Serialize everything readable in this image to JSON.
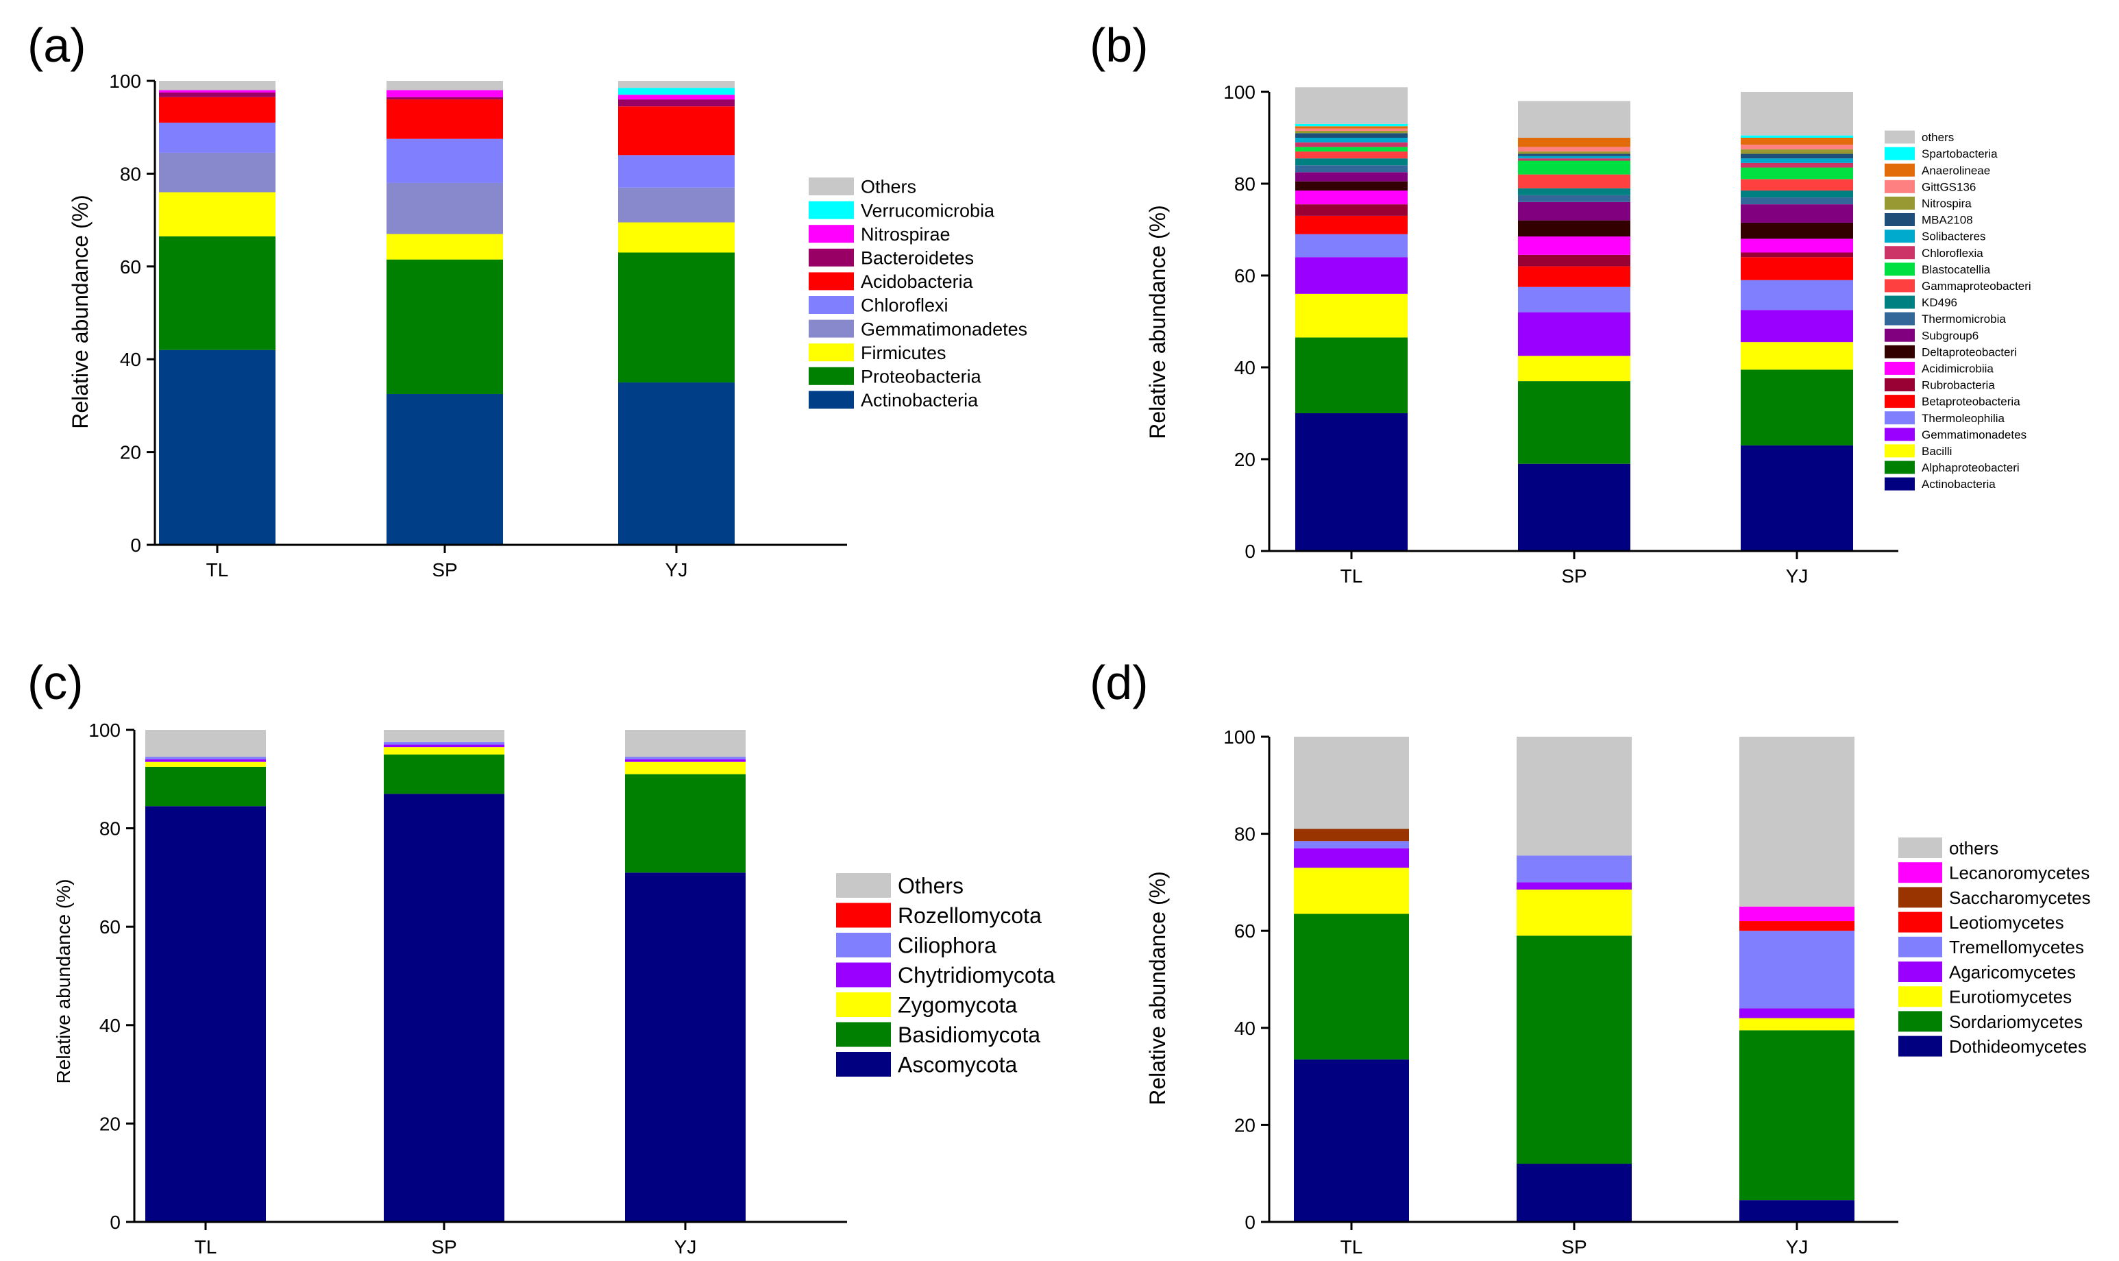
{
  "categories": [
    "TL",
    "SP",
    "YJ"
  ],
  "chart_data": [
    {
      "type": "bar",
      "stacked": true,
      "panel_label": "(a)",
      "title": "",
      "xlabel": "",
      "ylabel": "Relative abundance (%)",
      "ylim": [
        0,
        100
      ],
      "yticks": [
        0,
        20,
        40,
        60,
        80,
        100
      ],
      "categories": [
        "TL",
        "SP",
        "YJ"
      ],
      "legend_position": "right",
      "series": [
        {
          "name": "Actinobacteria",
          "color": "#003f87",
          "values": [
            42,
            32.5,
            35
          ]
        },
        {
          "name": "Proteobacteria",
          "color": "#008000",
          "values": [
            24.5,
            29,
            28
          ]
        },
        {
          "name": "Firmicutes",
          "color": "#ffff00",
          "values": [
            9.5,
            5.5,
            6.5
          ]
        },
        {
          "name": "Gemmatimonadetes",
          "color": "#8888cc",
          "values": [
            8.5,
            11,
            7.5
          ]
        },
        {
          "name": "Chloroflexi",
          "color": "#8080ff",
          "values": [
            6.5,
            9.5,
            7
          ]
        },
        {
          "name": "Acidobacteria",
          "color": "#ff0000",
          "values": [
            5.5,
            8.5,
            10.5
          ]
        },
        {
          "name": "Bacteroidetes",
          "color": "#990066",
          "values": [
            1,
            0.5,
            1.5
          ]
        },
        {
          "name": "Nitrospirae",
          "color": "#ff00ff",
          "values": [
            0.5,
            1.5,
            1
          ]
        },
        {
          "name": "Verrucomicrobia",
          "color": "#00ffff",
          "values": [
            0,
            0,
            1.5
          ]
        },
        {
          "name": "Others",
          "color": "#c8c8c8",
          "values": [
            2,
            2,
            1.5
          ]
        }
      ]
    },
    {
      "type": "bar",
      "stacked": true,
      "panel_label": "(b)",
      "title": "",
      "xlabel": "",
      "ylabel": "Relative abundance (%)",
      "ylim": [
        0,
        100
      ],
      "yticks": [
        0,
        20,
        40,
        60,
        80,
        100
      ],
      "categories": [
        "TL",
        "SP",
        "YJ"
      ],
      "legend_position": "right",
      "series": [
        {
          "name": "Actinobacteria",
          "color": "#000080",
          "values": [
            30,
            19,
            23
          ]
        },
        {
          "name": "Alphaproteobacteri",
          "color": "#008000",
          "values": [
            16.5,
            18,
            16.5
          ]
        },
        {
          "name": "Bacilli",
          "color": "#ffff00",
          "values": [
            9.5,
            5.5,
            6
          ]
        },
        {
          "name": "Gemmatimonadetes",
          "color": "#9900ff",
          "values": [
            8,
            9.5,
            7
          ]
        },
        {
          "name": "Thermoleophilia",
          "color": "#8080ff",
          "values": [
            5,
            5.5,
            6.5
          ]
        },
        {
          "name": "Betaproteobacteria",
          "color": "#ff0000",
          "values": [
            4,
            4.5,
            5
          ]
        },
        {
          "name": "Rubrobacteria",
          "color": "#990033",
          "values": [
            2.5,
            2.5,
            1
          ]
        },
        {
          "name": "Acidimicrobiia",
          "color": "#ff00ff",
          "values": [
            3,
            4,
            3
          ]
        },
        {
          "name": "Deltaproteobacteri",
          "color": "#330000",
          "values": [
            2,
            3.5,
            3.5
          ]
        },
        {
          "name": "Subgroup6",
          "color": "#800080",
          "values": [
            2,
            4,
            4
          ]
        },
        {
          "name": "Thermomicrobia",
          "color": "#336699",
          "values": [
            1.5,
            1.5,
            1.5
          ]
        },
        {
          "name": "KD496",
          "color": "#008080",
          "values": [
            1.5,
            1.5,
            1.5
          ]
        },
        {
          "name": "Gammaproteobacteri",
          "color": "#ff4040",
          "values": [
            1.5,
            3,
            2.5
          ]
        },
        {
          "name": "Blastocatellia",
          "color": "#00e040",
          "values": [
            1,
            3,
            2.5
          ]
        },
        {
          "name": "Chloroflexia",
          "color": "#cc3366",
          "values": [
            1,
            0.5,
            1
          ]
        },
        {
          "name": "Solibacteres",
          "color": "#00aacc",
          "values": [
            1,
            0.5,
            1
          ]
        },
        {
          "name": "MBA2108",
          "color": "#1f4e79",
          "values": [
            1,
            0.5,
            1
          ]
        },
        {
          "name": "Nitrospira",
          "color": "#999933",
          "values": [
            0.5,
            0.5,
            1
          ]
        },
        {
          "name": "GittGS136",
          "color": "#ff8080",
          "values": [
            0.5,
            1,
            1
          ]
        },
        {
          "name": "Anaerolineae",
          "color": "#e26b0a",
          "values": [
            0.5,
            2,
            1.5
          ]
        },
        {
          "name": "Spartobacteria",
          "color": "#00ffff",
          "values": [
            0.5,
            0,
            0.5
          ]
        },
        {
          "name": "others",
          "color": "#c8c8c8",
          "values": [
            8,
            8,
            9.5
          ]
        }
      ]
    },
    {
      "type": "bar",
      "stacked": true,
      "panel_label": "(c)",
      "title": "",
      "xlabel": "",
      "ylabel": "Relative abundance (%)",
      "ylim": [
        0,
        100
      ],
      "yticks": [
        0,
        20,
        40,
        60,
        80,
        100
      ],
      "categories": [
        "TL",
        "SP",
        "YJ"
      ],
      "legend_position": "right",
      "series": [
        {
          "name": "Ascomycota",
          "color": "#000080",
          "values": [
            84.5,
            87,
            71
          ]
        },
        {
          "name": "Basidiomycota",
          "color": "#008000",
          "values": [
            8,
            8,
            20
          ]
        },
        {
          "name": "Zygomycota",
          "color": "#ffff00",
          "values": [
            1,
            1.5,
            2.5
          ]
        },
        {
          "name": "Chytridiomycota",
          "color": "#9900ff",
          "values": [
            0.5,
            0.5,
            0.5
          ]
        },
        {
          "name": "Ciliophora",
          "color": "#8080ff",
          "values": [
            0.5,
            0.5,
            0.5
          ]
        },
        {
          "name": "Rozellomycota",
          "color": "#ff0000",
          "values": [
            0,
            0,
            0
          ]
        },
        {
          "name": "Others",
          "color": "#c8c8c8",
          "values": [
            5.5,
            2.5,
            5.5
          ]
        }
      ]
    },
    {
      "type": "bar",
      "stacked": true,
      "panel_label": "(d)",
      "title": "",
      "xlabel": "",
      "ylabel": "Relative abundance (%)",
      "ylim": [
        0,
        100
      ],
      "yticks": [
        0,
        20,
        40,
        60,
        80,
        100
      ],
      "categories": [
        "TL",
        "SP",
        "YJ"
      ],
      "legend_position": "right",
      "series": [
        {
          "name": "Dothideomycetes",
          "color": "#000080",
          "values": [
            33.5,
            12,
            4.5
          ]
        },
        {
          "name": "Sordariomycetes",
          "color": "#008000",
          "values": [
            30,
            47,
            35
          ]
        },
        {
          "name": "Eurotiomycetes",
          "color": "#ffff00",
          "values": [
            9.5,
            9.5,
            2.5
          ]
        },
        {
          "name": "Agaricomycetes",
          "color": "#9900ff",
          "values": [
            4,
            1.5,
            2
          ]
        },
        {
          "name": "Tremellomycetes",
          "color": "#8080ff",
          "values": [
            1.5,
            5.5,
            16
          ]
        },
        {
          "name": "Leotiomycetes",
          "color": "#ff0000",
          "values": [
            0,
            0,
            2
          ]
        },
        {
          "name": "Saccharomycetes",
          "color": "#993300",
          "values": [
            2.5,
            0,
            0
          ]
        },
        {
          "name": "Lecanoromycetes",
          "color": "#ff00ff",
          "values": [
            0,
            0,
            3
          ]
        },
        {
          "name": "others",
          "color": "#c8c8c8",
          "values": [
            19,
            24.5,
            35
          ]
        }
      ]
    }
  ]
}
